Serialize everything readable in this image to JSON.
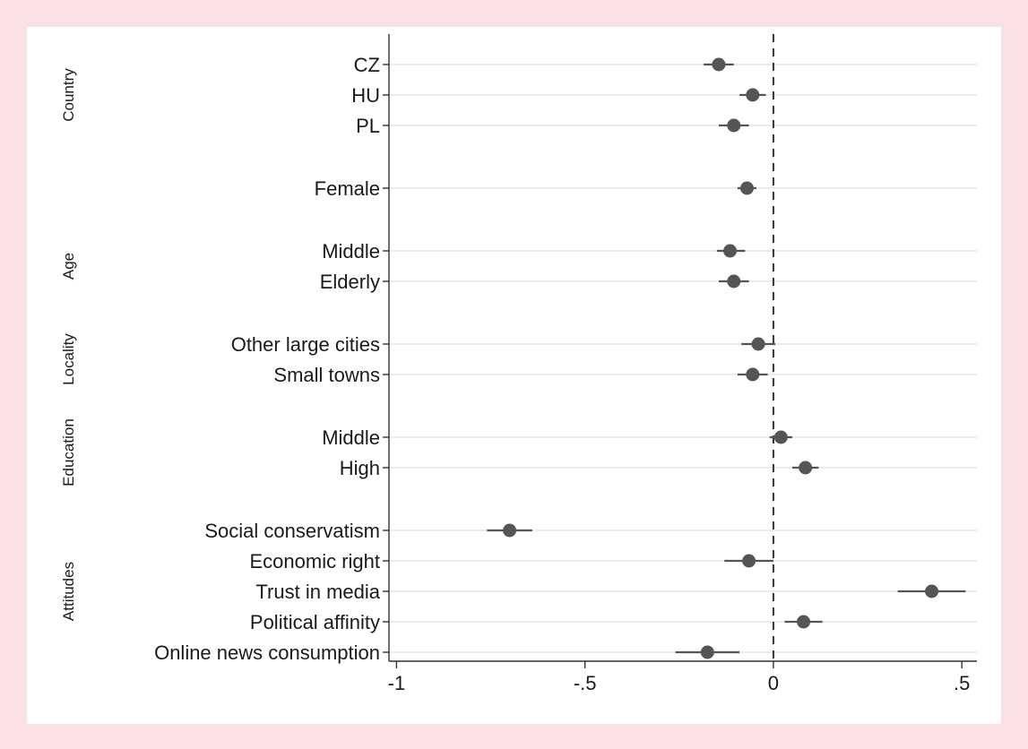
{
  "chart_data": {
    "type": "scatter",
    "subtype": "coefficient-plot",
    "orientation": "horizontal",
    "title": "",
    "xlabel": "",
    "ylabel": "",
    "xlim": [
      -1.02,
      0.54
    ],
    "xticks": [
      -1,
      -0.5,
      0,
      0.5
    ],
    "xtick_labels": [
      "-1",
      "-.5",
      "0",
      ".5"
    ],
    "reference_line": 0,
    "grid": "horizontal",
    "marker_color": "#555555",
    "groups": [
      {
        "label": "Country",
        "items": [
          "CZ",
          "HU",
          "PL"
        ]
      },
      {
        "label": "",
        "items": [
          "Female"
        ]
      },
      {
        "label": "Age",
        "items": [
          "Middle",
          "Elderly"
        ]
      },
      {
        "label": "Locality",
        "items": [
          "Other large cities",
          "Small towns"
        ]
      },
      {
        "label": "Education",
        "items": [
          "Middle",
          "High"
        ]
      },
      {
        "label": "Attitudes",
        "items": [
          "Social conservatism",
          "Economic right",
          "Trust in media",
          "Political affinity",
          "Online news consumption"
        ]
      }
    ],
    "points": [
      {
        "label": "CZ",
        "estimate": -0.145,
        "ci": [
          -0.185,
          -0.105
        ]
      },
      {
        "label": "HU",
        "estimate": -0.055,
        "ci": [
          -0.09,
          -0.02
        ]
      },
      {
        "label": "PL",
        "estimate": -0.105,
        "ci": [
          -0.145,
          -0.065
        ]
      },
      {
        "label": "Female",
        "estimate": -0.07,
        "ci": [
          -0.095,
          -0.045
        ]
      },
      {
        "label": "Middle",
        "estimate": -0.115,
        "ci": [
          -0.15,
          -0.075
        ]
      },
      {
        "label": "Elderly",
        "estimate": -0.105,
        "ci": [
          -0.145,
          -0.065
        ]
      },
      {
        "label": "Other large cities",
        "estimate": -0.04,
        "ci": [
          -0.085,
          0.005
        ]
      },
      {
        "label": "Small towns",
        "estimate": -0.055,
        "ci": [
          -0.095,
          -0.015
        ]
      },
      {
        "label": "Middle",
        "estimate": 0.02,
        "ci": [
          -0.01,
          0.05
        ]
      },
      {
        "label": "High",
        "estimate": 0.085,
        "ci": [
          0.05,
          0.12
        ]
      },
      {
        "label": "Social conservatism",
        "estimate": -0.7,
        "ci": [
          -0.76,
          -0.64
        ]
      },
      {
        "label": "Economic right",
        "estimate": -0.065,
        "ci": [
          -0.13,
          0.0
        ]
      },
      {
        "label": "Trust in media",
        "estimate": 0.42,
        "ci": [
          0.33,
          0.51
        ]
      },
      {
        "label": "Political affinity",
        "estimate": 0.08,
        "ci": [
          0.03,
          0.13
        ]
      },
      {
        "label": "Online news consumption",
        "estimate": -0.175,
        "ci": [
          -0.26,
          -0.09
        ]
      }
    ]
  }
}
